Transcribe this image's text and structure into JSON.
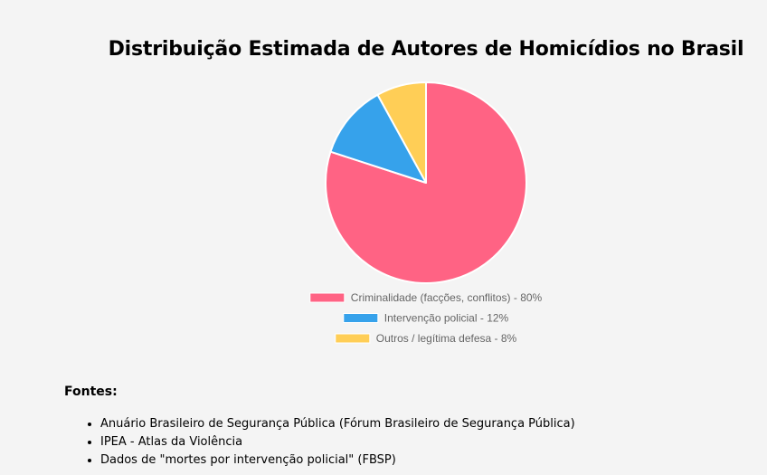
{
  "title": "Distribuição Estimada de Autores de Homicídios no Brasil",
  "chart_data": {
    "type": "pie",
    "unit": "%",
    "slices": [
      {
        "label": "Criminalidade (facções, conflitos) - 80%",
        "value": 80,
        "color": "#ff6384"
      },
      {
        "label": "Intervenção policial - 12%",
        "value": 12,
        "color": "#36a2eb"
      },
      {
        "label": "Outros / legítima defesa - 8%",
        "value": 8,
        "color": "#ffce56"
      }
    ],
    "legend_position": "bottom",
    "slice_border_color": "#ffffff"
  },
  "sources": {
    "title": "Fontes:",
    "items": [
      "Anuário Brasileiro de Segurança Pública (Fórum Brasileiro de Segurança Pública)",
      "IPEA - Atlas da Violência",
      "Dados de \"mortes por intervenção policial\" (FBSP)"
    ]
  }
}
